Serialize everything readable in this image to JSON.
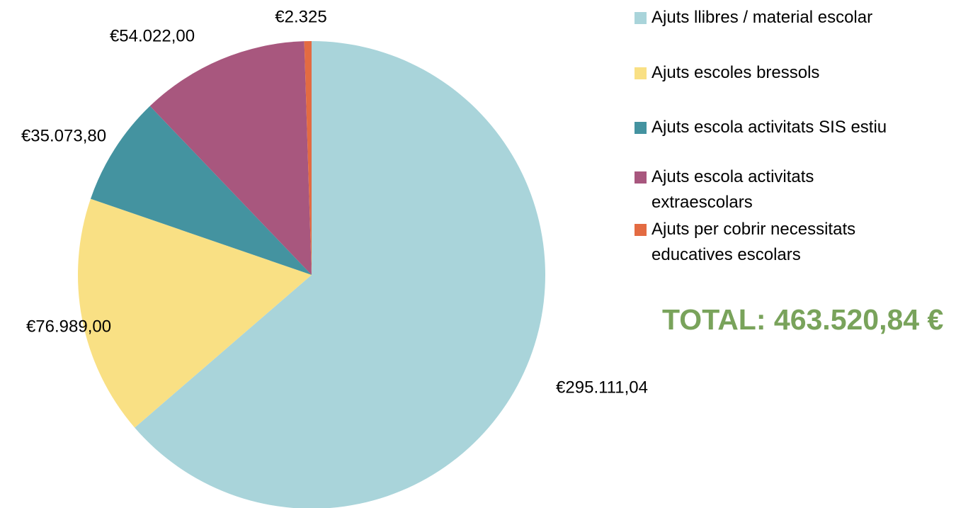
{
  "chart_data": {
    "type": "pie",
    "categories": [
      "Ajuts llibres / material escolar",
      "Ajuts escoles bressols",
      "Ajuts escola activitats SIS estiu",
      "Ajuts escola activitats extraescolars",
      "Ajuts per cobrir necessitats educatives escolars"
    ],
    "values": [
      295111.04,
      76989,
      35073.8,
      54022,
      2325
    ],
    "value_labels": [
      "€295.111,04",
      "€76.989,00",
      "€35.073,80",
      "€54.022,00",
      "€2.325"
    ],
    "colors": [
      "#a9d4da",
      "#f9e084",
      "#4493a0",
      "#a8577e",
      "#e36b42"
    ],
    "annotation": "TOTAL: 463.520,84 €"
  }
}
